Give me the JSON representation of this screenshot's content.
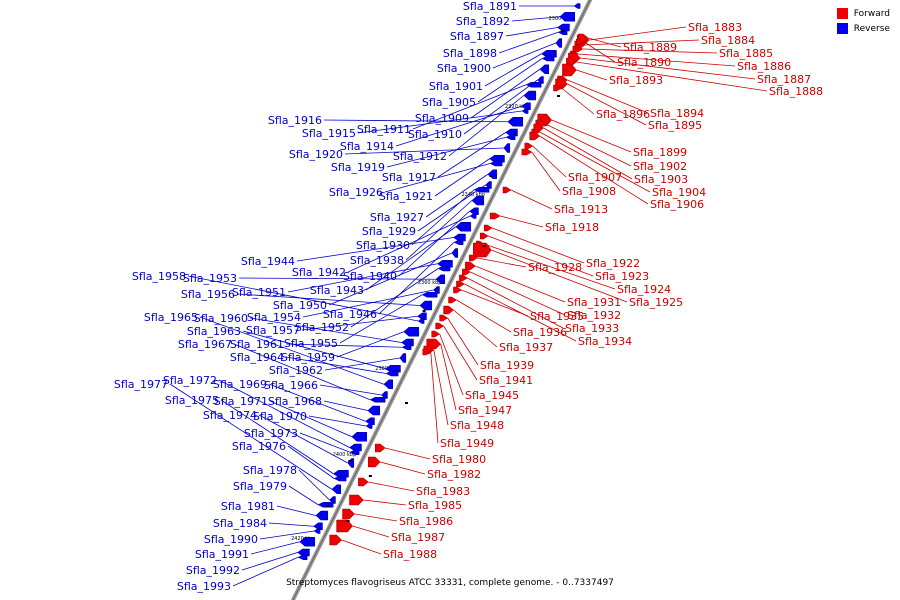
{
  "legend": {
    "forward_label": "Forward",
    "reverse_label": "Reverse",
    "forward_color": "#ee0000",
    "reverse_color": "#0000ee"
  },
  "caption": "Streptomyces flavogriseus ATCC 33331, complete genome. - 0..7337497",
  "kbp_ticks": [
    "2300 kbp",
    "2320 kbp",
    "2340 kbp",
    "2360 kbp",
    "2380 kbp",
    "2400 kbp",
    "2420 kbp"
  ],
  "forward_genes": [
    "Sfla_1883",
    "Sfla_1884",
    "Sfla_1885",
    "Sfla_1886",
    "Sfla_1887",
    "Sfla_1888",
    "Sfla_1889",
    "Sfla_1890",
    "Sfla_1893",
    "Sfla_1894",
    "Sfla_1895",
    "Sfla_1896",
    "Sfla_1899",
    "Sfla_1902",
    "Sfla_1903",
    "Sfla_1904",
    "Sfla_1906",
    "Sfla_1907",
    "Sfla_1908",
    "Sfla_1913",
    "Sfla_1918",
    "Sfla_1922",
    "Sfla_1923",
    "Sfla_1924",
    "Sfla_1925",
    "Sfla_1928",
    "Sfla_1931",
    "Sfla_1932",
    "Sfla_1933",
    "Sfla_1934",
    "Sfla_1935",
    "Sfla_1936",
    "Sfla_1937",
    "Sfla_1939",
    "Sfla_1941",
    "Sfla_1945",
    "Sfla_1947",
    "Sfla_1948",
    "Sfla_1949",
    "Sfla_1980",
    "Sfla_1982",
    "Sfla_1983",
    "Sfla_1985",
    "Sfla_1986",
    "Sfla_1987",
    "Sfla_1988"
  ],
  "reverse_genes": [
    "Sfla_1891",
    "Sfla_1892",
    "Sfla_1897",
    "Sfla_1898",
    "Sfla_1900",
    "Sfla_1901",
    "Sfla_1905",
    "Sfla_1909",
    "Sfla_1910",
    "Sfla_1911",
    "Sfla_1912",
    "Sfla_1914",
    "Sfla_1915",
    "Sfla_1916",
    "Sfla_1917",
    "Sfla_1919",
    "Sfla_1920",
    "Sfla_1921",
    "Sfla_1926",
    "Sfla_1927",
    "Sfla_1929",
    "Sfla_1930",
    "Sfla_1938",
    "Sfla_1940",
    "Sfla_1942",
    "Sfla_1943",
    "Sfla_1944",
    "Sfla_1946",
    "Sfla_1950",
    "Sfla_1951",
    "Sfla_1952",
    "Sfla_1953",
    "Sfla_1954",
    "Sfla_1955",
    "Sfla_1956",
    "Sfla_1957",
    "Sfla_1958",
    "Sfla_1959",
    "Sfla_1960",
    "Sfla_1961",
    "Sfla_1962",
    "Sfla_1963",
    "Sfla_1964",
    "Sfla_1965",
    "Sfla_1966",
    "Sfla_1967",
    "Sfla_1968",
    "Sfla_1969",
    "Sfla_1970",
    "Sfla_1971",
    "Sfla_1972",
    "Sfla_1973",
    "Sfla_1974",
    "Sfla_1975",
    "Sfla_1976",
    "Sfla_1977",
    "Sfla_1978",
    "Sfla_1979",
    "Sfla_1981",
    "Sfla_1984",
    "Sfla_1990",
    "Sfla_1991",
    "Sfla_1992",
    "Sfla_1993"
  ]
}
